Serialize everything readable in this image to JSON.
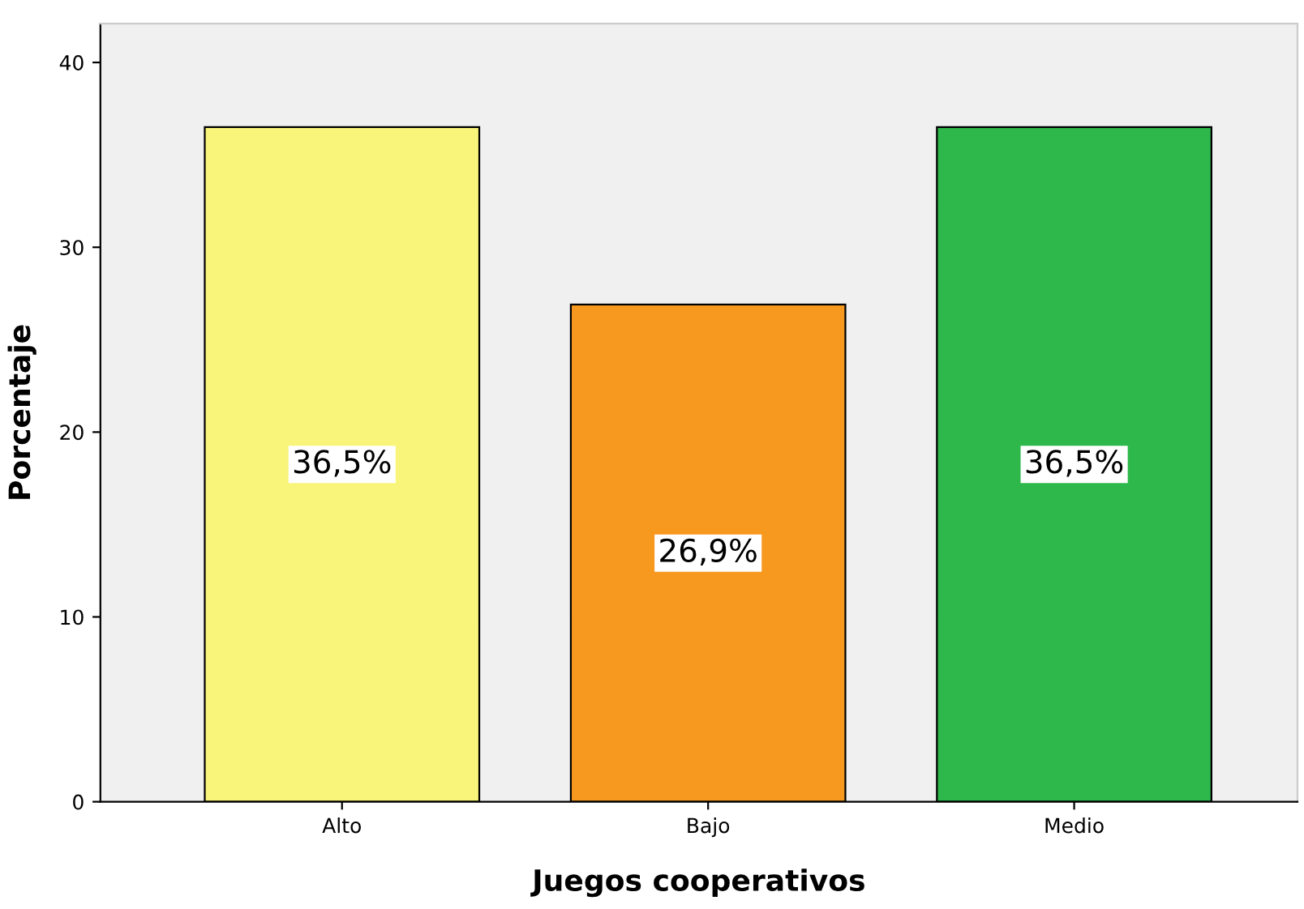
{
  "chart_data": {
    "type": "bar",
    "xlabel": "Juegos cooperativos",
    "ylabel": "Porcentaje",
    "categories": [
      "Alto",
      "Bajo",
      "Medio"
    ],
    "values": [
      36.5,
      26.9,
      36.5
    ],
    "colors": [
      "#f9f57a",
      "#f7981f",
      "#2eb84b"
    ],
    "value_labels": [
      "36,5%",
      "26,9%",
      "36,5%"
    ],
    "ylim": [
      0,
      42.1
    ],
    "yticks": [
      0,
      10,
      20,
      30,
      40
    ],
    "grid": false
  }
}
